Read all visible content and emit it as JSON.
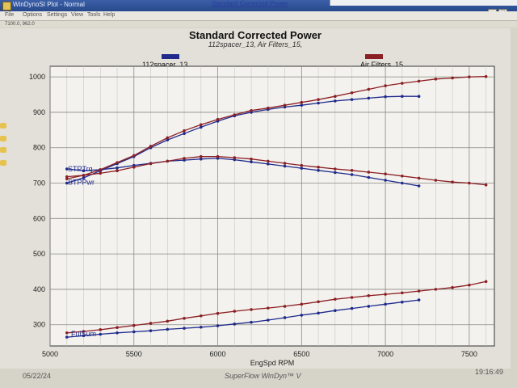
{
  "window": {
    "title": "WinDynoSI Plot - Normal",
    "background_title": "Standard Corrected Power",
    "menu": [
      "File",
      "Options",
      "Settings",
      "View",
      "Tools",
      "Help"
    ],
    "coord_readout": "7100.0, 962.0"
  },
  "status": {
    "date": "05/22/24",
    "brand": "SuperFlow WinDyn™ V",
    "time": "19:16:49"
  },
  "legend": [
    {
      "name": "112spacer_13",
      "color": "#1f2a8c"
    },
    {
      "name": "Air Filters_15",
      "color": "#8c1f24"
    }
  ],
  "chart_data": {
    "type": "line",
    "title": "Standard Corrected Power",
    "subtitle": "112spacer_13, Air Filters_15,",
    "xlabel": "EngSpd RPM",
    "ylabel": "",
    "xlim": [
      5000,
      7650
    ],
    "ylim": [
      240,
      1030
    ],
    "xticks": [
      5000,
      5500,
      6000,
      6500,
      7000,
      7500
    ],
    "yticks": [
      300,
      400,
      500,
      600,
      700,
      800,
      900,
      1000
    ],
    "grid": true,
    "legend_position": "top",
    "series_labels": [
      "STPTrq",
      "STPPwr",
      "FulSum"
    ],
    "series": [
      {
        "name": "112spacer_13",
        "label": "STPTrq",
        "color": "#1f2a8c",
        "x": [
          5100,
          5200,
          5300,
          5400,
          5500,
          5600,
          5700,
          5800,
          5900,
          6000,
          6100,
          6200,
          6300,
          6400,
          6500,
          6600,
          6700,
          6800,
          6900,
          7000,
          7100,
          7200
        ],
        "y": [
          740,
          735,
          738,
          743,
          750,
          756,
          762,
          765,
          768,
          770,
          766,
          760,
          754,
          748,
          742,
          736,
          730,
          724,
          716,
          708,
          700,
          692
        ]
      },
      {
        "name": "112spacer_13",
        "label": "STPPwr",
        "color": "#1f2a8c",
        "x": [
          5100,
          5200,
          5300,
          5400,
          5500,
          5600,
          5700,
          5800,
          5900,
          6000,
          6100,
          6200,
          6300,
          6400,
          6500,
          6600,
          6700,
          6800,
          6900,
          7000,
          7100,
          7200
        ],
        "y": [
          700,
          715,
          735,
          755,
          775,
          800,
          822,
          840,
          858,
          875,
          890,
          900,
          908,
          915,
          920,
          926,
          932,
          936,
          940,
          944,
          945,
          945
        ]
      },
      {
        "name": "112spacer_13",
        "label": "FulSum",
        "color": "#1f2a8c",
        "x": [
          5100,
          5200,
          5300,
          5400,
          5500,
          5600,
          5700,
          5800,
          5900,
          6000,
          6100,
          6200,
          6300,
          6400,
          6500,
          6600,
          6700,
          6800,
          6900,
          7000,
          7100,
          7200
        ],
        "y": [
          265,
          269,
          273,
          277,
          280,
          283,
          287,
          290,
          293,
          297,
          302,
          307,
          313,
          320,
          327,
          333,
          340,
          346,
          352,
          358,
          364,
          370
        ]
      },
      {
        "name": "Air Filters_15",
        "label": "STPTrq",
        "color": "#8c1f24",
        "x": [
          5100,
          5200,
          5300,
          5400,
          5500,
          5600,
          5700,
          5800,
          5900,
          6000,
          6100,
          6200,
          6300,
          6400,
          6500,
          6600,
          6700,
          6800,
          6900,
          7000,
          7100,
          7200,
          7300,
          7400,
          7500,
          7600
        ],
        "y": [
          718,
          722,
          728,
          735,
          745,
          755,
          762,
          770,
          775,
          775,
          772,
          768,
          762,
          756,
          750,
          745,
          740,
          736,
          731,
          726,
          720,
          714,
          708,
          703,
          700,
          695
        ]
      },
      {
        "name": "Air Filters_15",
        "label": "STPPwr",
        "color": "#8c1f24",
        "x": [
          5100,
          5200,
          5300,
          5400,
          5500,
          5600,
          5700,
          5800,
          5900,
          6000,
          6100,
          6200,
          6300,
          6400,
          6500,
          6600,
          6700,
          6800,
          6900,
          7000,
          7100,
          7200,
          7300,
          7400,
          7500,
          7600
        ],
        "y": [
          712,
          722,
          738,
          758,
          778,
          804,
          828,
          848,
          865,
          880,
          893,
          905,
          912,
          920,
          928,
          936,
          945,
          955,
          965,
          975,
          982,
          988,
          994,
          997,
          1000,
          1001
        ]
      },
      {
        "name": "Air Filters_15",
        "label": "FulSum",
        "color": "#8c1f24",
        "x": [
          5100,
          5200,
          5300,
          5400,
          5500,
          5600,
          5700,
          5800,
          5900,
          6000,
          6100,
          6200,
          6300,
          6400,
          6500,
          6600,
          6700,
          6800,
          6900,
          7000,
          7100,
          7200,
          7300,
          7400,
          7500,
          7600
        ],
        "y": [
          277,
          281,
          286,
          292,
          298,
          304,
          310,
          318,
          325,
          332,
          338,
          343,
          347,
          352,
          358,
          365,
          372,
          377,
          382,
          386,
          390,
          395,
          400,
          405,
          412,
          422
        ]
      }
    ]
  }
}
